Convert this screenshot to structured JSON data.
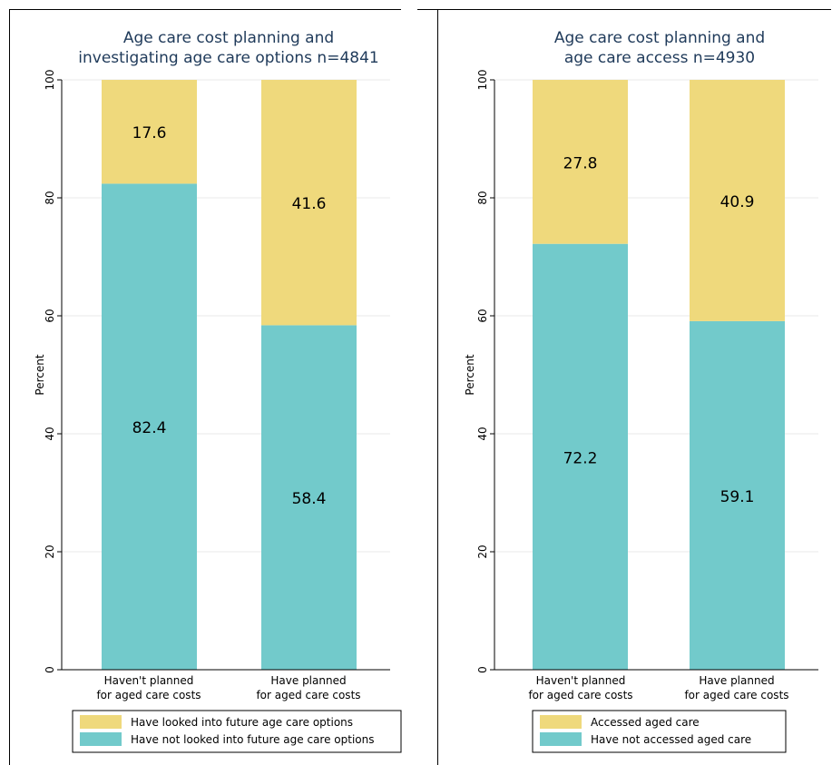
{
  "chart_data": [
    {
      "type": "bar",
      "stacked": true,
      "title": "Age care cost planning and investigating age care options n=4841",
      "title_lines": [
        "Age care cost planning and",
        "investigating age care options n=4841"
      ],
      "ylabel": "Percent",
      "ylim": [
        0,
        100
      ],
      "yticks": [
        "0",
        "20",
        "40",
        "60",
        "80",
        "100"
      ],
      "grid": true,
      "legend_position": "bottom",
      "categories": [
        [
          "Haven't planned",
          "for aged care costs"
        ],
        [
          "Have planned",
          "for aged care costs"
        ]
      ],
      "series": [
        {
          "name": "Have not looked into future age care options",
          "values": [
            82.4,
            58.4
          ],
          "labels": [
            "82.4",
            "58.4"
          ],
          "color": "#72CACB"
        },
        {
          "name": "Have looked into future age care options",
          "values": [
            17.6,
            41.6
          ],
          "labels": [
            "17.6",
            "41.6"
          ],
          "color": "#EFD97C"
        }
      ],
      "legend_order": [
        1,
        0
      ]
    },
    {
      "type": "bar",
      "stacked": true,
      "title": "Age care cost planning and age care access n=4930",
      "title_lines": [
        "Age care cost planning and",
        "age care access n=4930"
      ],
      "ylabel": "Percent",
      "ylim": [
        0,
        100
      ],
      "yticks": [
        "0",
        "20",
        "40",
        "60",
        "80",
        "100"
      ],
      "grid": true,
      "legend_position": "bottom",
      "categories": [
        [
          "Haven't planned",
          "for aged care costs"
        ],
        [
          "Have planned",
          "for aged care costs"
        ]
      ],
      "series": [
        {
          "name": "Have not accessed aged care",
          "values": [
            72.2,
            59.1
          ],
          "labels": [
            "72.2",
            "59.1"
          ],
          "color": "#72CACB"
        },
        {
          "name": "Accessed aged care",
          "values": [
            27.8,
            40.9
          ],
          "labels": [
            "27.8",
            "40.9"
          ],
          "color": "#EFD97C"
        }
      ],
      "legend_order": [
        1,
        0
      ]
    }
  ],
  "colors": {
    "title": "#1F3A5A",
    "grid": "#EAEAEA",
    "axis": "#000000"
  }
}
